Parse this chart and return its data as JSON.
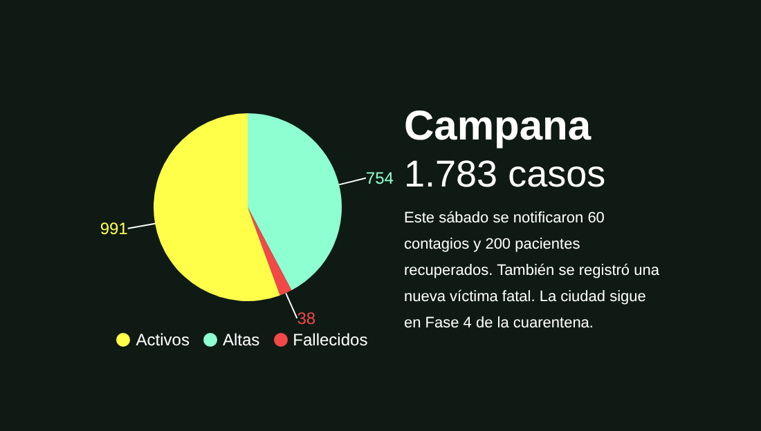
{
  "chart_data": {
    "type": "pie",
    "title": "Campana",
    "subtitle": "1.783 casos",
    "annotations": [
      "Este sábado se notificaron 60 contagios y 200 pacientes recuperados. También se registró una nueva víctima fatal. La ciudad sigue en Fase 4 de la cuarentena."
    ],
    "categories": [
      "Altas",
      "Fallecidos",
      "Activos"
    ],
    "values": [
      754,
      38,
      991
    ],
    "colors": [
      "#8effd0",
      "#f24848",
      "#ffff4a"
    ],
    "data_labels": true,
    "legend": "bottom"
  }
}
